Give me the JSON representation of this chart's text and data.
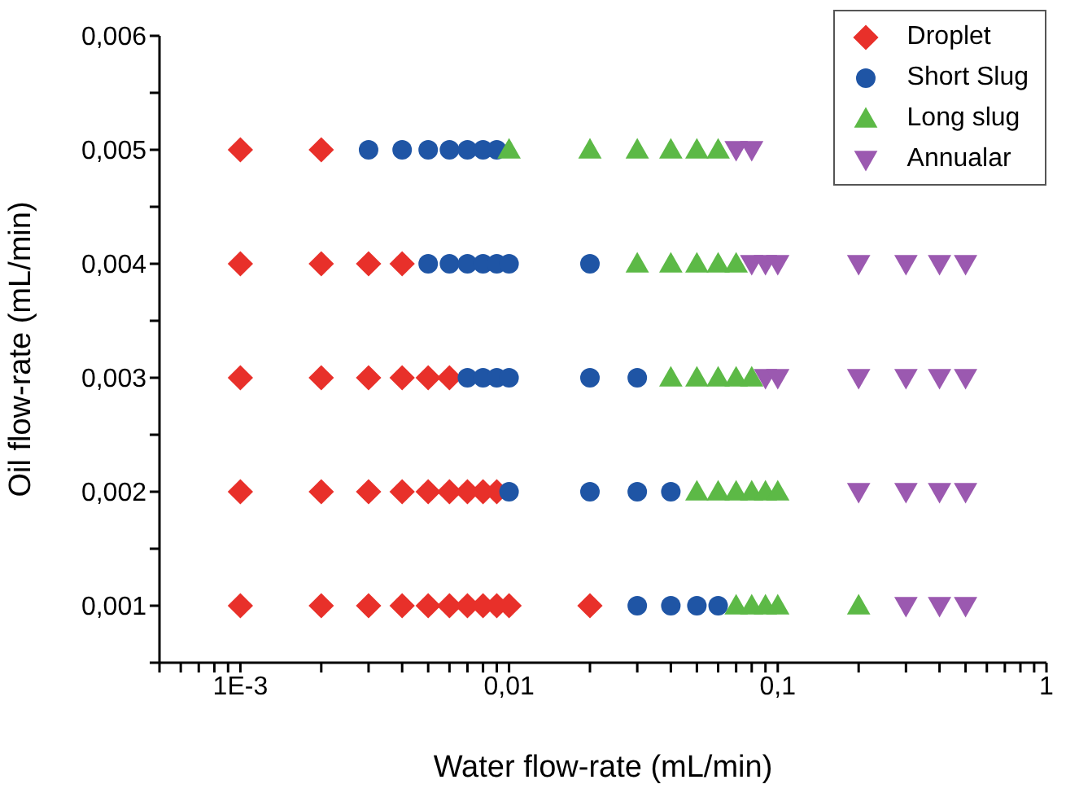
{
  "chart_data": {
    "type": "scatter",
    "xlabel": "Water flow-rate (mL/min)",
    "ylabel": "Oil flow-rate (mL/min)",
    "log": "x",
    "xlim": [
      0.0005,
      1
    ],
    "ylim": [
      0.0005,
      0.006
    ],
    "xticks": [
      {
        "value": 0.0005,
        "label": null
      },
      {
        "value": 0.0006,
        "label": null
      },
      {
        "value": 0.0007,
        "label": null
      },
      {
        "value": 0.0008,
        "label": null
      },
      {
        "value": 0.0009,
        "label": null
      },
      {
        "value": 0.001,
        "label": "1E-3"
      },
      {
        "value": 0.002,
        "label": null
      },
      {
        "value": 0.003,
        "label": null
      },
      {
        "value": 0.004,
        "label": null
      },
      {
        "value": 0.005,
        "label": null
      },
      {
        "value": 0.006,
        "label": null
      },
      {
        "value": 0.007,
        "label": null
      },
      {
        "value": 0.008,
        "label": null
      },
      {
        "value": 0.009,
        "label": null
      },
      {
        "value": 0.01,
        "label": "0,01"
      },
      {
        "value": 0.02,
        "label": null
      },
      {
        "value": 0.03,
        "label": null
      },
      {
        "value": 0.04,
        "label": null
      },
      {
        "value": 0.05,
        "label": null
      },
      {
        "value": 0.06,
        "label": null
      },
      {
        "value": 0.07,
        "label": null
      },
      {
        "value": 0.08,
        "label": null
      },
      {
        "value": 0.09,
        "label": null
      },
      {
        "value": 0.1,
        "label": "0,1"
      },
      {
        "value": 0.2,
        "label": null
      },
      {
        "value": 0.3,
        "label": null
      },
      {
        "value": 0.4,
        "label": null
      },
      {
        "value": 0.5,
        "label": null
      },
      {
        "value": 0.6,
        "label": null
      },
      {
        "value": 0.7,
        "label": null
      },
      {
        "value": 0.8,
        "label": null
      },
      {
        "value": 0.9,
        "label": null
      },
      {
        "value": 1,
        "label": "1"
      }
    ],
    "yticks": [
      {
        "value": 0.0005,
        "label": null
      },
      {
        "value": 0.001,
        "label": "0,001"
      },
      {
        "value": 0.0015,
        "label": null
      },
      {
        "value": 0.002,
        "label": "0,002"
      },
      {
        "value": 0.0025,
        "label": null
      },
      {
        "value": 0.003,
        "label": "0,003"
      },
      {
        "value": 0.0035,
        "label": null
      },
      {
        "value": 0.004,
        "label": "0,004"
      },
      {
        "value": 0.0045,
        "label": null
      },
      {
        "value": 0.005,
        "label": "0,005"
      },
      {
        "value": 0.0055,
        "label": null
      },
      {
        "value": 0.006,
        "label": "0,006"
      }
    ],
    "grid": false,
    "legend": "top right",
    "series": [
      {
        "name": "Droplet",
        "color": "#e8302a",
        "marker": "diamond",
        "x": [
          0.001,
          0.002,
          0.001,
          0.002,
          0.003,
          0.004,
          0.001,
          0.002,
          0.003,
          0.004,
          0.005,
          0.006,
          0.001,
          0.002,
          0.003,
          0.004,
          0.005,
          0.006,
          0.007,
          0.008,
          0.009,
          0.001,
          0.002,
          0.003,
          0.004,
          0.005,
          0.006,
          0.007,
          0.008,
          0.009,
          0.01,
          0.02
        ],
        "values": [
          0.005,
          0.005,
          0.004,
          0.004,
          0.004,
          0.004,
          0.003,
          0.003,
          0.003,
          0.003,
          0.003,
          0.003,
          0.002,
          0.002,
          0.002,
          0.002,
          0.002,
          0.002,
          0.002,
          0.002,
          0.002,
          0.001,
          0.001,
          0.001,
          0.001,
          0.001,
          0.001,
          0.001,
          0.001,
          0.001,
          0.001,
          0.001
        ]
      },
      {
        "name": "Short Slug",
        "color": "#1f55a5",
        "marker": "circle",
        "x": [
          0.003,
          0.004,
          0.005,
          0.006,
          0.007,
          0.008,
          0.009,
          0.005,
          0.006,
          0.007,
          0.008,
          0.009,
          0.01,
          0.02,
          0.007,
          0.008,
          0.009,
          0.01,
          0.02,
          0.03,
          0.01,
          0.02,
          0.03,
          0.04,
          0.03,
          0.04,
          0.05,
          0.06
        ],
        "values": [
          0.005,
          0.005,
          0.005,
          0.005,
          0.005,
          0.005,
          0.005,
          0.004,
          0.004,
          0.004,
          0.004,
          0.004,
          0.004,
          0.004,
          0.003,
          0.003,
          0.003,
          0.003,
          0.003,
          0.003,
          0.002,
          0.002,
          0.002,
          0.002,
          0.001,
          0.001,
          0.001,
          0.001
        ]
      },
      {
        "name": "Long slug",
        "color": "#5cb946",
        "marker": "triangle",
        "x": [
          0.01,
          0.02,
          0.03,
          0.04,
          0.05,
          0.06,
          0.03,
          0.04,
          0.05,
          0.06,
          0.07,
          0.04,
          0.05,
          0.06,
          0.07,
          0.08,
          0.05,
          0.06,
          0.07,
          0.08,
          0.09,
          0.1,
          0.07,
          0.08,
          0.09,
          0.1,
          0.2
        ],
        "values": [
          0.005,
          0.005,
          0.005,
          0.005,
          0.005,
          0.005,
          0.004,
          0.004,
          0.004,
          0.004,
          0.004,
          0.003,
          0.003,
          0.003,
          0.003,
          0.003,
          0.002,
          0.002,
          0.002,
          0.002,
          0.002,
          0.002,
          0.001,
          0.001,
          0.001,
          0.001,
          0.001
        ]
      },
      {
        "name": "Annualar",
        "color": "#9b59b0",
        "marker": "triangle-down",
        "x": [
          0.07,
          0.08,
          0.08,
          0.09,
          0.1,
          0.2,
          0.3,
          0.4,
          0.5,
          0.09,
          0.1,
          0.2,
          0.3,
          0.4,
          0.5,
          0.2,
          0.3,
          0.4,
          0.5,
          0.3,
          0.4,
          0.5
        ],
        "values": [
          0.005,
          0.005,
          0.004,
          0.004,
          0.004,
          0.004,
          0.004,
          0.004,
          0.004,
          0.003,
          0.003,
          0.003,
          0.003,
          0.003,
          0.003,
          0.002,
          0.002,
          0.002,
          0.002,
          0.001,
          0.001,
          0.001
        ]
      }
    ]
  }
}
